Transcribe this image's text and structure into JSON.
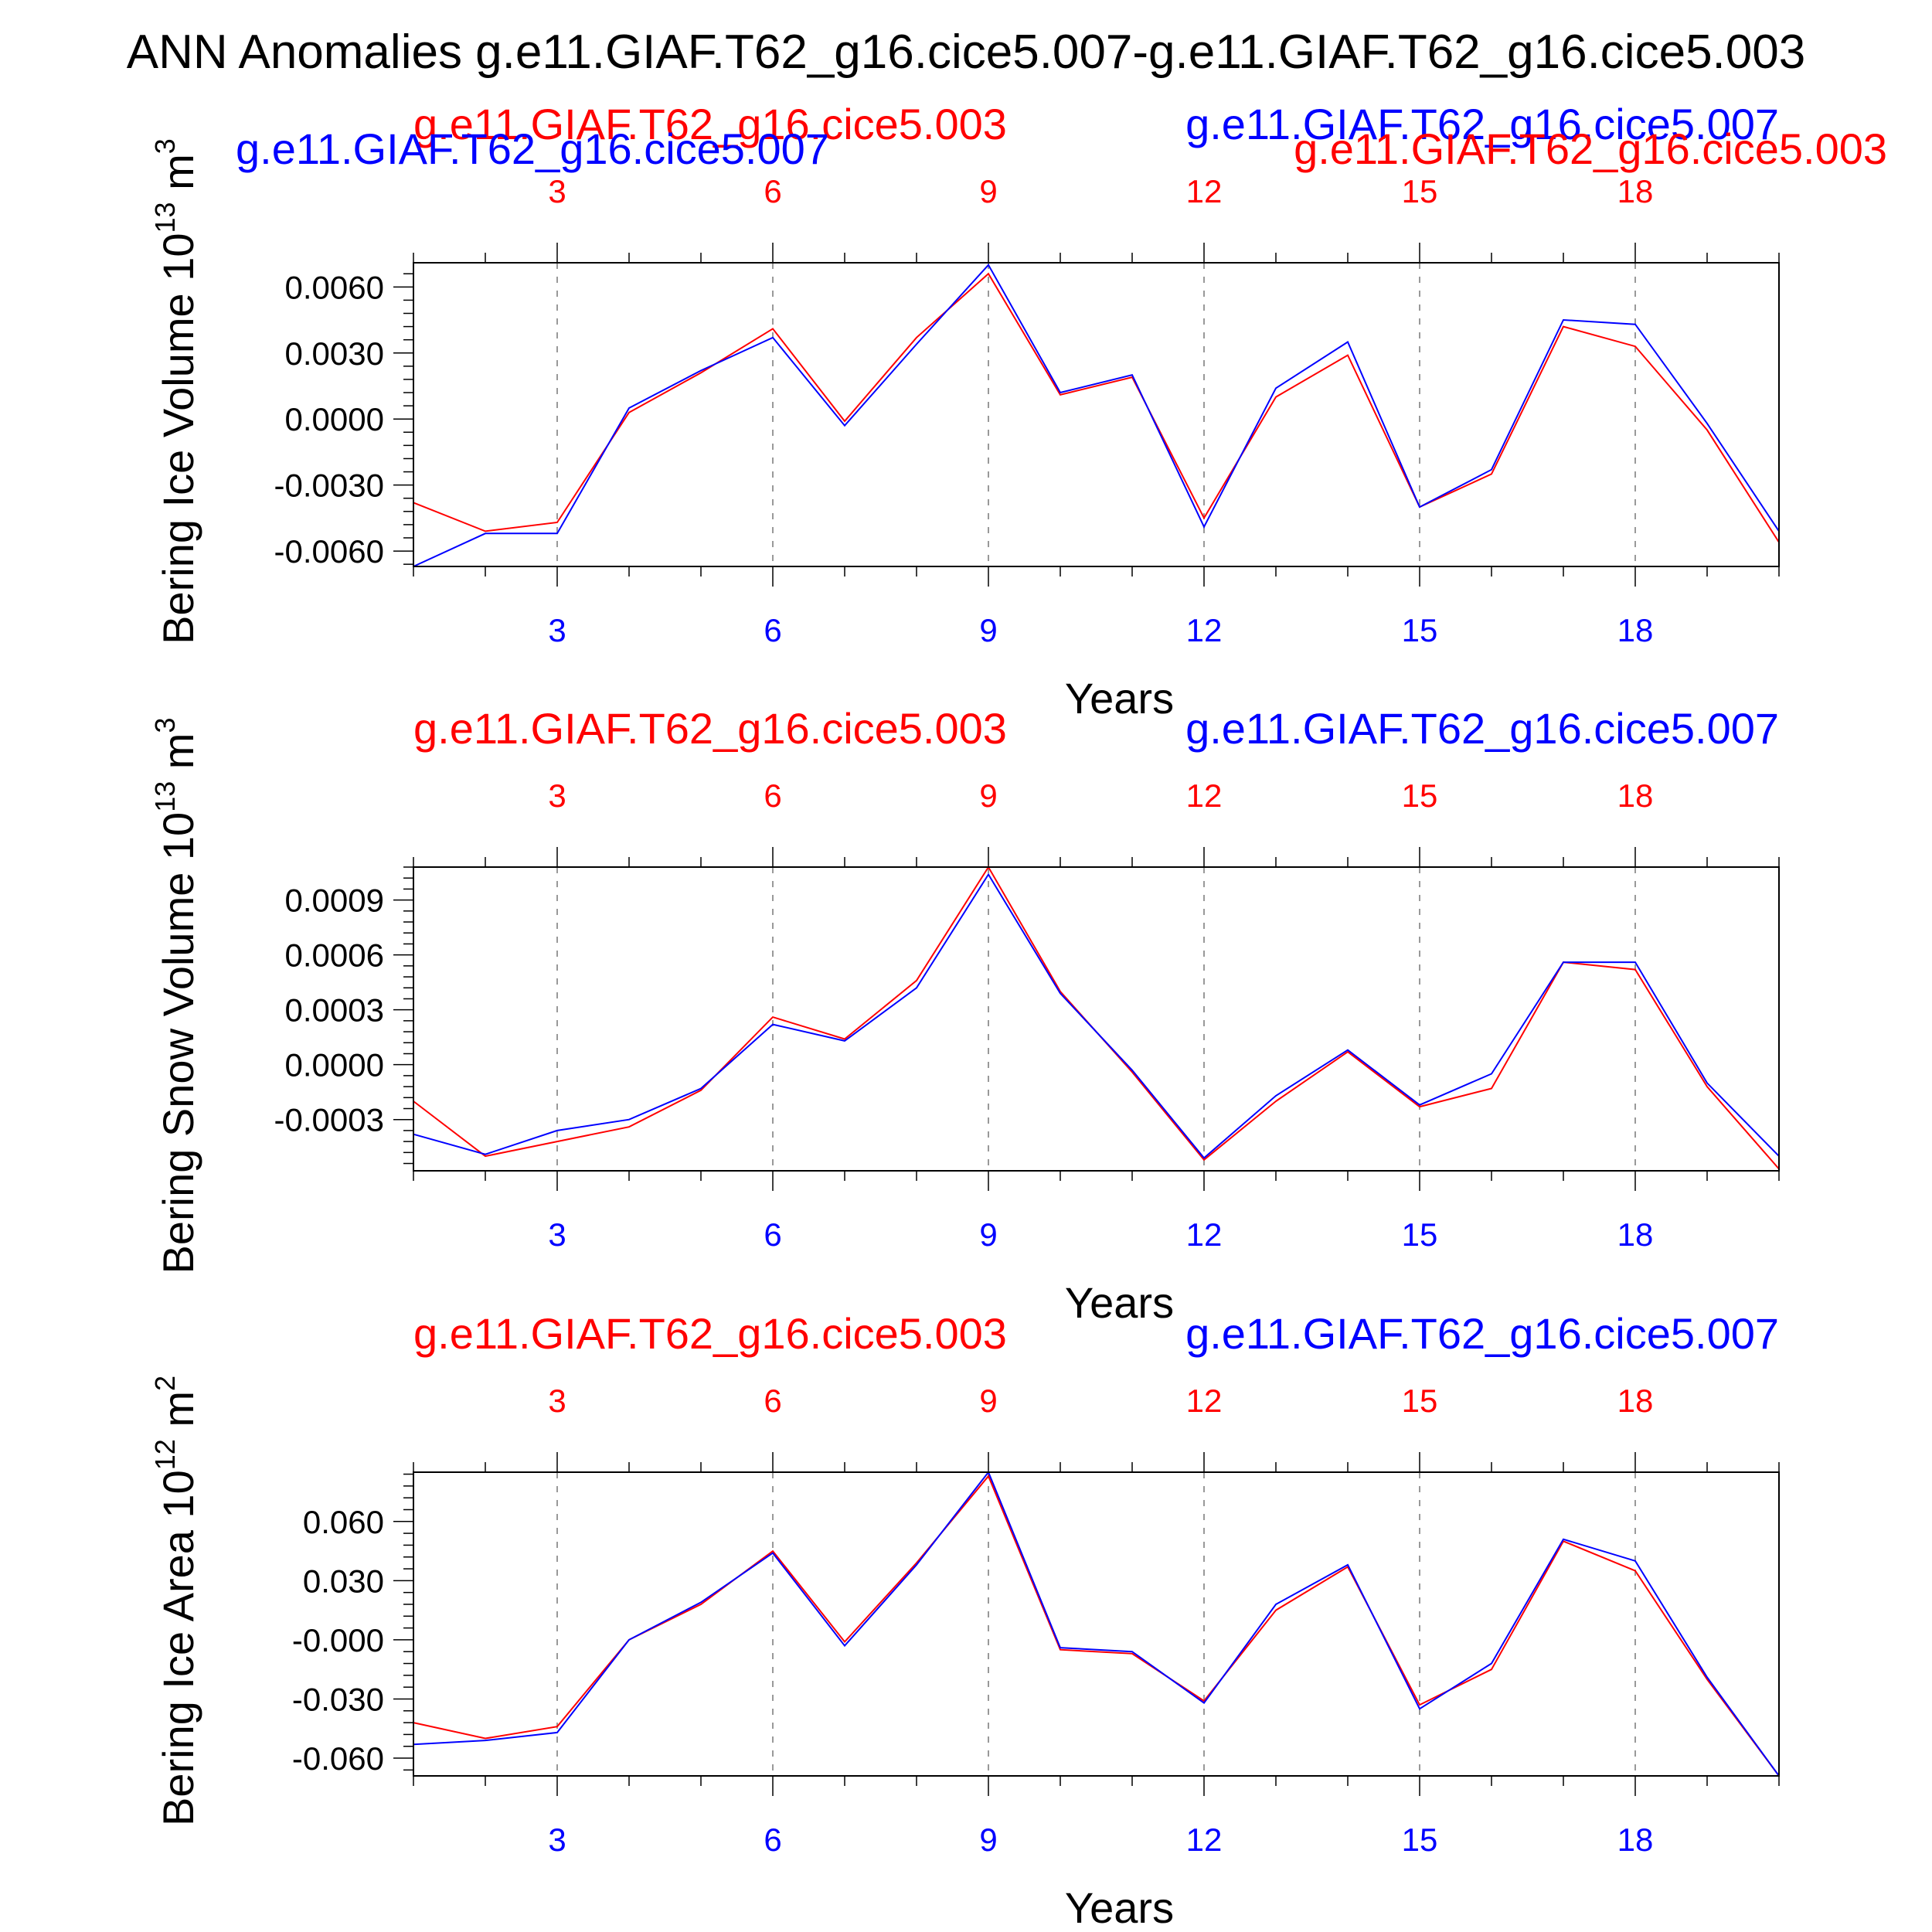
{
  "figure_title": "ANN Anomalies g.e11.GIAF.T62_g16.cice5.007-g.e11.GIAF.T62_g16.cice5.003",
  "colors": {
    "run_a": "#ff0000",
    "run_b": "#0000ff",
    "axis": "#000000",
    "grid": "#999999"
  },
  "chart_data": [
    {
      "type": "line",
      "title": "",
      "ylabel": "Bering Ice Volume 10",
      "ylabel_exp": "13",
      "ylabel_unit": " m",
      "ylabel_unit_exp": "3",
      "xlabel": "Years",
      "xlim": [
        1,
        20
      ],
      "ylim": [
        -0.0067,
        0.0071
      ],
      "yticks": [
        -0.006,
        -0.003,
        0.0,
        0.003,
        0.006
      ],
      "ytick_labels": [
        "-0.0060",
        "-0.0030",
        "0.0000",
        "0.0030",
        "0.0060"
      ],
      "xticks": [
        3,
        6,
        9,
        12,
        15,
        18
      ],
      "xtick_labels": [
        "3",
        "6",
        "9",
        "12",
        "15",
        "18"
      ],
      "legend_left": "g.e11.GIAF.T62_g16.cice5.003",
      "legend_right": "g.e11.GIAF.T62_g16.cice5.007",
      "overlay_labels": [
        {
          "text": "g.e11.GIAF.T62_g16.cice5.007",
          "color": "blue",
          "anchor": "start",
          "pos": "top-left"
        },
        {
          "text": "g.e11.GIAF.T62_g16.cice5.003",
          "color": "red",
          "anchor": "end",
          "pos": "top-right"
        }
      ],
      "x": [
        1,
        2,
        3,
        4,
        5,
        6,
        7,
        8,
        9,
        10,
        11,
        12,
        13,
        14,
        15,
        16,
        17,
        18,
        19,
        20
      ],
      "series": [
        {
          "name": "g.e11.GIAF.T62_g16.cice5.003",
          "color": "red",
          "values": [
            -0.0038,
            -0.0051,
            -0.0047,
            0.0003,
            0.0021,
            0.0041,
            -0.0001,
            0.0037,
            0.0066,
            0.0011,
            0.0019,
            -0.0045,
            0.001,
            0.0029,
            -0.004,
            -0.0025,
            0.0042,
            0.0033,
            -0.0005,
            -0.0056
          ]
        },
        {
          "name": "g.e11.GIAF.T62_g16.cice5.007",
          "color": "blue",
          "values": [
            -0.0067,
            -0.0052,
            -0.0052,
            0.0005,
            0.0022,
            0.0037,
            -0.0003,
            0.0034,
            0.007,
            0.0012,
            0.002,
            -0.0049,
            0.0014,
            0.0035,
            -0.004,
            -0.0023,
            0.0045,
            0.0043,
            -0.0002,
            -0.0051
          ]
        }
      ]
    },
    {
      "type": "line",
      "title": "",
      "ylabel": "Bering Snow Volume 10",
      "ylabel_exp": "13",
      "ylabel_unit": " m",
      "ylabel_unit_exp": "3",
      "xlabel": "Years",
      "xlim": [
        1,
        20
      ],
      "ylim": [
        -0.00058,
        0.00108
      ],
      "yticks": [
        -0.0003,
        0.0,
        0.0003,
        0.0006,
        0.0009
      ],
      "ytick_labels": [
        "-0.0003",
        "0.0000",
        "0.0003",
        "0.0006",
        "0.0009"
      ],
      "xticks": [
        3,
        6,
        9,
        12,
        15,
        18
      ],
      "xtick_labels": [
        "3",
        "6",
        "9",
        "12",
        "15",
        "18"
      ],
      "legend_left": "g.e11.GIAF.T62_g16.cice5.003",
      "legend_right": "g.e11.GIAF.T62_g16.cice5.007",
      "x": [
        1,
        2,
        3,
        4,
        5,
        6,
        7,
        8,
        9,
        10,
        11,
        12,
        13,
        14,
        15,
        16,
        17,
        18,
        19,
        20
      ],
      "series": [
        {
          "name": "g.e11.GIAF.T62_g16.cice5.003",
          "color": "red",
          "values": [
            -0.0002,
            -0.0005,
            -0.00042,
            -0.00034,
            -0.00014,
            0.00026,
            0.00014,
            0.00046,
            0.00108,
            0.0004,
            -4e-05,
            -0.00052,
            -0.0002,
            7e-05,
            -0.00023,
            -0.00013,
            0.00056,
            0.00052,
            -0.00012,
            -0.00057
          ]
        },
        {
          "name": "g.e11.GIAF.T62_g16.cice5.007",
          "color": "blue",
          "values": [
            -0.00038,
            -0.00049,
            -0.00036,
            -0.0003,
            -0.00013,
            0.00022,
            0.00013,
            0.00042,
            0.00104,
            0.00039,
            -3e-05,
            -0.00051,
            -0.00017,
            8e-05,
            -0.00022,
            -5e-05,
            0.00056,
            0.00056,
            -0.0001,
            -0.0005
          ]
        }
      ]
    },
    {
      "type": "line",
      "title": "",
      "ylabel": "Bering Ice Area 10",
      "ylabel_exp": "12",
      "ylabel_unit": " m",
      "ylabel_unit_exp": "2",
      "xlabel": "Years",
      "xlim": [
        1,
        20
      ],
      "ylim": [
        -0.069,
        0.085
      ],
      "yticks": [
        -0.06,
        -0.03,
        0.0,
        0.03,
        0.06
      ],
      "ytick_labels": [
        "-0.060",
        "-0.030",
        "-0.000",
        "0.030",
        "0.060"
      ],
      "xticks": [
        3,
        6,
        9,
        12,
        15,
        18
      ],
      "xtick_labels": [
        "3",
        "6",
        "9",
        "12",
        "15",
        "18"
      ],
      "legend_left": "g.e11.GIAF.T62_g16.cice5.003",
      "legend_right": "g.e11.GIAF.T62_g16.cice5.007",
      "x": [
        1,
        2,
        3,
        4,
        5,
        6,
        7,
        8,
        9,
        10,
        11,
        12,
        13,
        14,
        15,
        16,
        17,
        18,
        19,
        20
      ],
      "series": [
        {
          "name": "g.e11.GIAF.T62_g16.cice5.003",
          "color": "red",
          "values": [
            -0.042,
            -0.05,
            -0.044,
            0.0,
            0.018,
            0.045,
            -0.001,
            0.039,
            0.083,
            -0.005,
            -0.007,
            -0.031,
            0.015,
            0.037,
            -0.033,
            -0.015,
            0.05,
            0.035,
            -0.02,
            -0.069
          ]
        },
        {
          "name": "g.e11.GIAF.T62_g16.cice5.007",
          "color": "blue",
          "values": [
            -0.053,
            -0.051,
            -0.047,
            0.0,
            0.019,
            0.044,
            -0.003,
            0.038,
            0.085,
            -0.004,
            -0.006,
            -0.032,
            0.018,
            0.038,
            -0.035,
            -0.012,
            0.051,
            0.04,
            -0.019,
            -0.069
          ]
        }
      ]
    }
  ]
}
